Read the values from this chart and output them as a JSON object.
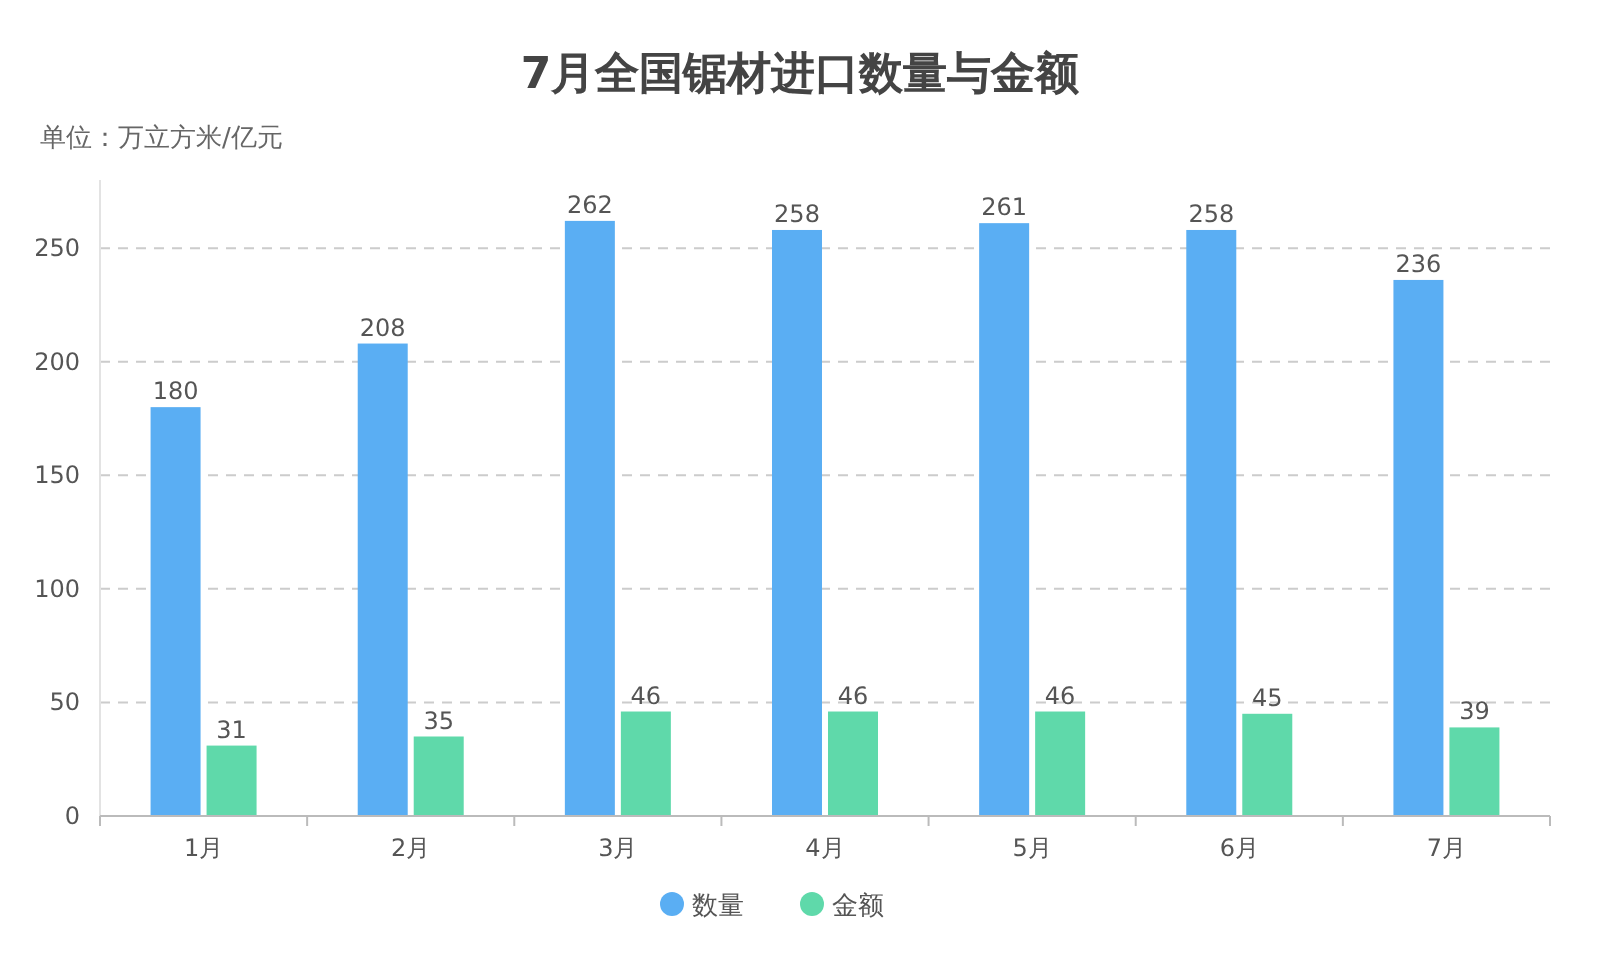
{
  "chart_data": {
    "type": "bar",
    "title": "7月全国锯材进口数量与金额",
    "subtitle": "单位：万立方米/亿元",
    "categories": [
      "1月",
      "2月",
      "3月",
      "4月",
      "5月",
      "6月",
      "7月"
    ],
    "series": [
      {
        "name": "数量",
        "color": "#5aaef3",
        "values": [
          180,
          208,
          262,
          258,
          261,
          258,
          236
        ]
      },
      {
        "name": "金额",
        "color": "#5fd9aa",
        "values": [
          31,
          35,
          46,
          46,
          46,
          45,
          39
        ]
      }
    ],
    "ylim": [
      0,
      280
    ],
    "yticks": [
      0,
      50,
      100,
      150,
      200,
      250
    ],
    "grid": "y",
    "legend": "bottom",
    "data_labels": true
  }
}
